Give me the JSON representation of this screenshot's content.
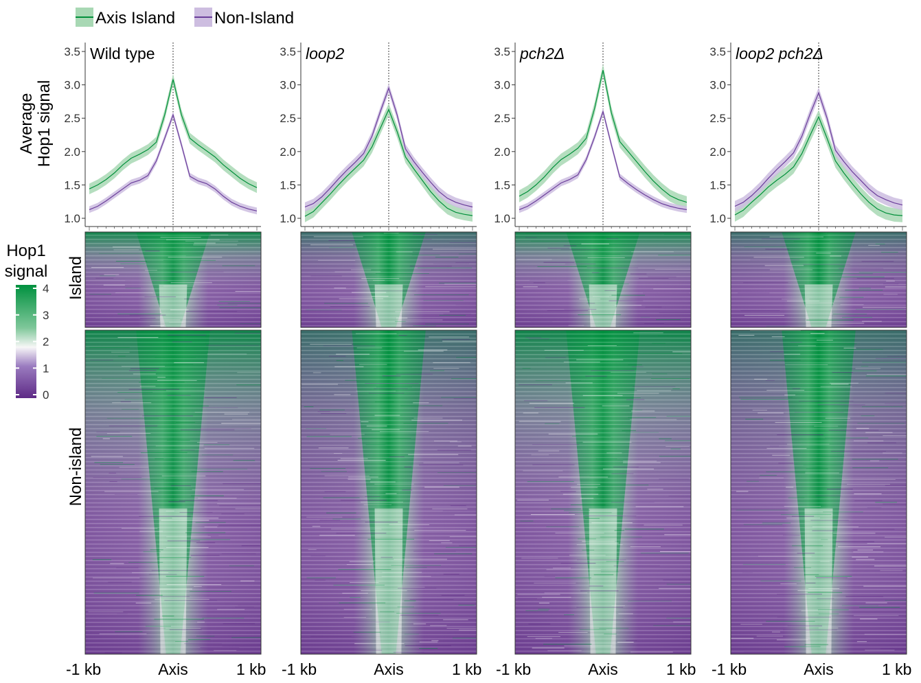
{
  "colors": {
    "island": "#008f3a",
    "island_band": "#a8d8b4",
    "nonisland": "#6a3d9a",
    "nonisland_band": "#cdbde0",
    "heat_high": "#00913f",
    "heat_mid": "#f7f7f7",
    "heat_low": "#5e2a86"
  },
  "legend": {
    "island": "Axis Island",
    "nonisland": "Non-Island"
  },
  "labels": {
    "y_profile_1": "Average",
    "y_profile_2": "Hop1 signal",
    "row_island": "Island",
    "row_nonisland": "Non-island",
    "colorbar_title_1": "Hop1",
    "colorbar_title_2": "signal"
  },
  "x_ticks": [
    "-1 kb",
    "Axis",
    "1 kb"
  ],
  "chart_data": {
    "type": "line",
    "y_ticks": [
      "1.0",
      "1.5",
      "2.0",
      "2.5",
      "3.0",
      "3.5"
    ],
    "ylim": [
      0.95,
      3.55
    ],
    "x": [
      -1.0,
      -0.9,
      -0.8,
      -0.7,
      -0.6,
      -0.5,
      -0.4,
      -0.3,
      -0.2,
      -0.1,
      0.0,
      0.1,
      0.2,
      0.3,
      0.4,
      0.5,
      0.6,
      0.7,
      0.8,
      0.9,
      1.0
    ],
    "colorbar": {
      "ticks": [
        "0",
        "1",
        "2",
        "3",
        "4"
      ],
      "range": [
        0,
        4
      ]
    },
    "panels": [
      {
        "title": "Wild type",
        "italic": false,
        "series": [
          {
            "name": "Axis Island",
            "values": [
              1.44,
              1.5,
              1.58,
              1.68,
              1.8,
              1.9,
              1.96,
              2.03,
              2.14,
              2.55,
              3.08,
              2.55,
              2.2,
              2.1,
              2.01,
              1.92,
              1.8,
              1.7,
              1.6,
              1.52,
              1.46
            ],
            "band": 0.08
          },
          {
            "name": "Non-Island",
            "values": [
              1.13,
              1.18,
              1.26,
              1.35,
              1.44,
              1.53,
              1.57,
              1.64,
              1.86,
              2.2,
              2.55,
              2.1,
              1.63,
              1.56,
              1.52,
              1.44,
              1.33,
              1.24,
              1.18,
              1.14,
              1.11
            ],
            "band": 0.05
          }
        ]
      },
      {
        "title": "loop2",
        "italic": true,
        "series": [
          {
            "name": "Axis Island",
            "values": [
              1.03,
              1.1,
              1.23,
              1.36,
              1.5,
              1.63,
              1.75,
              1.87,
              2.07,
              2.35,
              2.63,
              2.3,
              1.92,
              1.74,
              1.57,
              1.4,
              1.26,
              1.15,
              1.09,
              1.06,
              1.04
            ],
            "band": 0.09
          },
          {
            "name": "Non-Island",
            "values": [
              1.17,
              1.22,
              1.32,
              1.45,
              1.59,
              1.72,
              1.84,
              1.97,
              2.23,
              2.6,
              2.95,
              2.55,
              2.04,
              1.85,
              1.69,
              1.54,
              1.4,
              1.3,
              1.24,
              1.2,
              1.17
            ],
            "band": 0.07
          }
        ]
      },
      {
        "title": "pch2Δ",
        "italic": true,
        "series": [
          {
            "name": "Axis Island",
            "values": [
              1.33,
              1.4,
              1.5,
              1.62,
              1.76,
              1.88,
              1.96,
              2.05,
              2.2,
              2.65,
              3.22,
              2.58,
              2.15,
              2.0,
              1.85,
              1.7,
              1.56,
              1.44,
              1.34,
              1.28,
              1.24
            ],
            "band": 0.09
          },
          {
            "name": "Non-Island",
            "values": [
              1.13,
              1.18,
              1.26,
              1.35,
              1.44,
              1.53,
              1.58,
              1.65,
              1.88,
              2.22,
              2.6,
              2.1,
              1.62,
              1.52,
              1.43,
              1.35,
              1.28,
              1.22,
              1.18,
              1.15,
              1.13
            ],
            "band": 0.05
          }
        ]
      },
      {
        "title": "loop2 pch2Δ",
        "italic": true,
        "series": [
          {
            "name": "Axis Island",
            "values": [
              1.05,
              1.12,
              1.24,
              1.35,
              1.47,
              1.57,
              1.66,
              1.77,
              1.97,
              2.25,
              2.52,
              2.2,
              1.86,
              1.68,
              1.52,
              1.37,
              1.24,
              1.14,
              1.08,
              1.05,
              1.04
            ],
            "band": 0.1
          },
          {
            "name": "Non-Island",
            "values": [
              1.18,
              1.24,
              1.34,
              1.46,
              1.6,
              1.73,
              1.85,
              1.98,
              2.23,
              2.57,
              2.88,
              2.5,
              2.02,
              1.85,
              1.7,
              1.57,
              1.44,
              1.34,
              1.28,
              1.23,
              1.2
            ],
            "band": 0.08
          }
        ]
      }
    ]
  }
}
